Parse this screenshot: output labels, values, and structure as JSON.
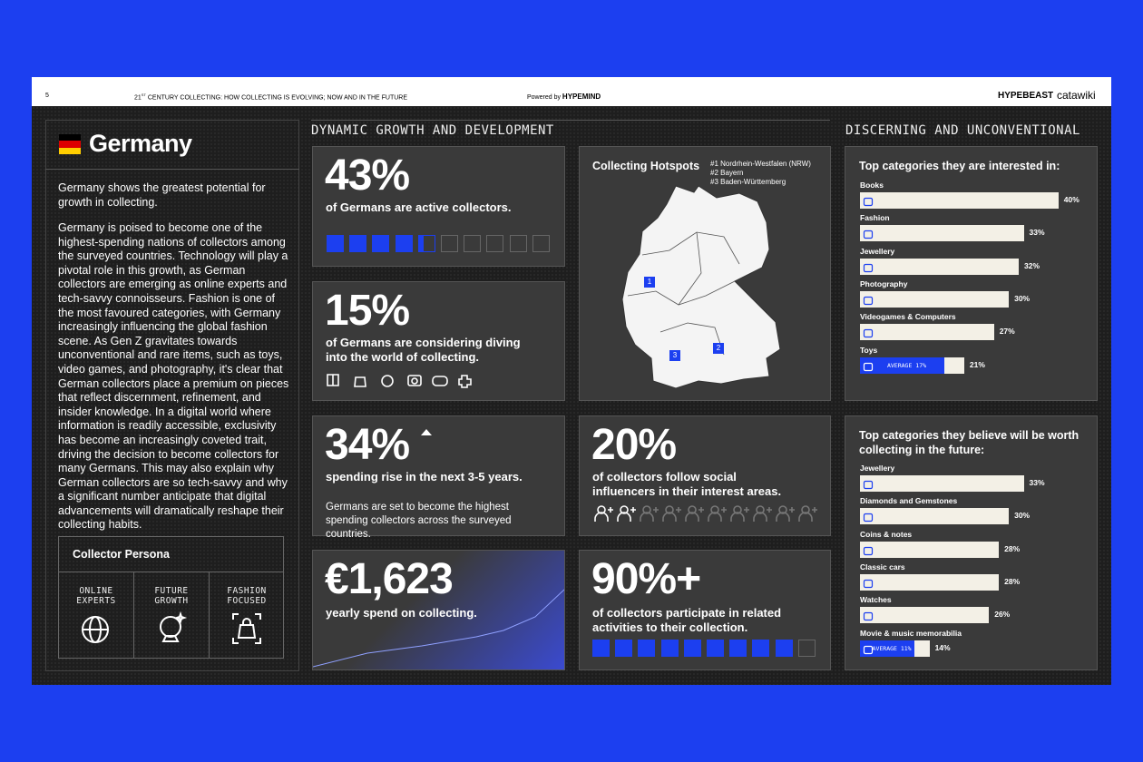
{
  "header": {
    "page": "5",
    "title_number": "21",
    "title_sup": "ST",
    "title_rest": " CENTURY COLLECTING: HOW COLLECTING IS EVOLVING; NOW AND IN THE FUTURE",
    "powered_by": "Powered by",
    "powered_brand": "HYPEMIND",
    "brands": [
      "HYPEBEAST",
      "catawiki"
    ]
  },
  "profile": {
    "country": "Germany",
    "intro": "Germany shows the greatest potential for growth in collecting.",
    "body": "Germany is poised to become one of the highest-spending nations of collectors among the surveyed countries. Technology will play a pivotal role in this growth, as German collectors are emerging as online experts and tech-savvy connoisseurs. Fashion is one of the most favoured categories, with Germany increasingly influencing the global fashion scene. As Gen Z gravitates towards unconventional and rare items, such as toys, video games, and photography, it's clear that German collectors place a premium on pieces that reflect discernment, refinement, and insider knowledge. In a digital world where information is readily accessible, exclusivity has become an increasingly coveted trait, driving the decision to become collectors for many Germans. This may also explain why German collectors are so tech-savvy and why a significant number anticipate that digital advancements will dramatically reshape their collecting habits.",
    "persona": {
      "title": "Collector Persona",
      "traits": [
        "ONLINE EXPERTS",
        "FUTURE GROWTH",
        "FASHION FOCUSED"
      ]
    }
  },
  "growth": {
    "title": "DYNAMIC GROWTH AND DEVELOPMENT",
    "stats": [
      {
        "value": 43,
        "value_label": "43%",
        "text": "of Germans are active collectors."
      },
      {
        "value": 15,
        "value_label": "15%",
        "text": "of Germans are considering diving into the world of collecting."
      },
      {
        "value": 34,
        "value_label": "34%",
        "text": "spending rise in the next 3-5 years.",
        "note": "Germans are set to become the highest spending collectors across the surveyed countries."
      },
      {
        "value": 1623,
        "value_label": "€1,623",
        "text": "yearly spend on collecting."
      },
      {
        "value": 20,
        "value_label": "20%",
        "text": "of collectors follow social influencers in their interest areas."
      },
      {
        "value": 90,
        "value_label": "90%+",
        "text": "of collectors participate in related activities to their collection."
      }
    ]
  },
  "hotspots": {
    "title": "Collecting Hotspots",
    "regions": [
      "#1 Nordrhein-Westfalen (NRW)",
      "#2 Bayern",
      "#3 Baden-Württemberg"
    ],
    "markers": [
      "1",
      "2",
      "3"
    ]
  },
  "discerning": {
    "title": "DISCERNING AND UNCONVENTIONAL",
    "interests": {
      "title": "Top categories they are interested in:",
      "categories": [
        "Books",
        "Fashion",
        "Jewellery",
        "Photography",
        "Videogames & Computers",
        "Toys"
      ],
      "values": [
        40,
        33,
        32,
        30,
        27,
        21
      ],
      "value_labels": [
        "40%",
        "33%",
        "32%",
        "30%",
        "27%",
        "21%"
      ],
      "average": {
        "value": 17,
        "label": "AVERAGE 17%"
      }
    },
    "future": {
      "title": "Top categories they believe will be worth collecting in the future:",
      "categories": [
        "Jewellery",
        "Diamonds and Gemstones",
        "Coins & notes",
        "Classic cars",
        "Watches",
        "Movie & music memorabilia"
      ],
      "values": [
        33,
        30,
        28,
        28,
        26,
        14
      ],
      "value_labels": [
        "33%",
        "30%",
        "28%",
        "28%",
        "26%",
        "14%"
      ],
      "average": {
        "value": 11,
        "label": "AVERAGE 11%"
      }
    }
  }
}
